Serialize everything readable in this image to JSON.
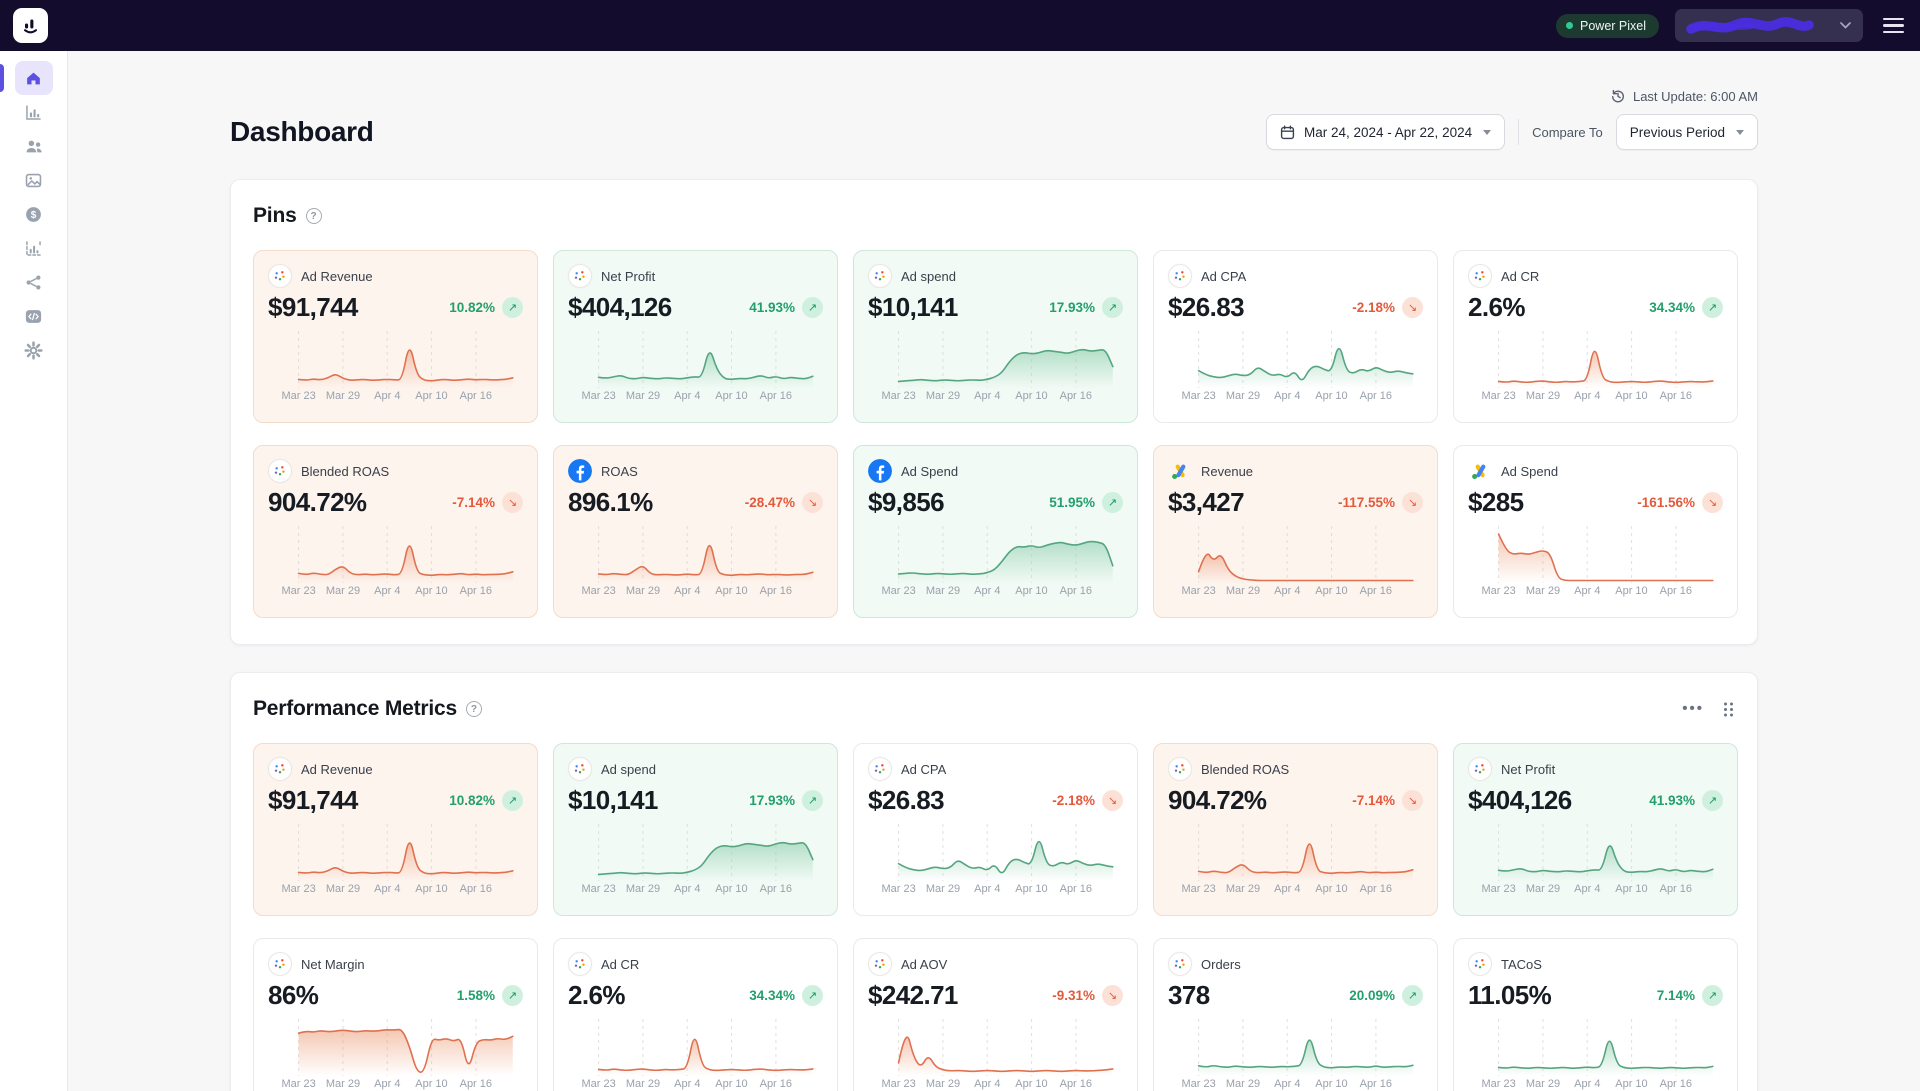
{
  "topbar": {
    "badge_label": "Power Pixel",
    "account_dropdown": {
      "redacted": true
    }
  },
  "sidebar": {
    "items": [
      {
        "icon": "home",
        "active": true
      },
      {
        "icon": "bar-chart",
        "active": false
      },
      {
        "icon": "users",
        "active": false
      },
      {
        "icon": "image",
        "active": false
      },
      {
        "icon": "dollar",
        "active": false
      },
      {
        "icon": "chart-report",
        "active": false
      },
      {
        "icon": "share",
        "active": false
      },
      {
        "icon": "code",
        "active": false
      },
      {
        "icon": "gear",
        "active": false
      }
    ]
  },
  "header": {
    "title": "Dashboard",
    "last_update": "Last Update: 6:00 AM",
    "date_range": "Mar 24, 2024 - Apr 22, 2024",
    "compare_to_label": "Compare To",
    "compare_value": "Previous Period"
  },
  "colors": {
    "accent": "#5b50e0",
    "green_text": "#22a06b",
    "orange_text": "#e2593c",
    "chart_green": "#55a581",
    "chart_orange": "#df7150",
    "navbar": "#140c2c"
  },
  "sections": [
    {
      "title": "Pins",
      "cards": [
        {
          "label": "Ad Revenue",
          "value": "$91,744",
          "change": "10.82%",
          "direction": "up",
          "icon": "blended-metrics",
          "tone": "peach",
          "chart_color": "orange",
          "series_key": "ad_revenue"
        },
        {
          "label": "Net Profit",
          "value": "$404,126",
          "change": "41.93%",
          "direction": "up",
          "icon": "blended-metrics",
          "tone": "mint",
          "chart_color": "green",
          "series_key": "net_profit"
        },
        {
          "label": "Ad spend",
          "value": "$10,141",
          "change": "17.93%",
          "direction": "up",
          "icon": "blended-metrics",
          "tone": "mint",
          "chart_color": "green",
          "series_key": "ad_spend"
        },
        {
          "label": "Ad CPA",
          "value": "$26.83",
          "change": "-2.18%",
          "direction": "down",
          "icon": "blended-metrics",
          "tone": "white",
          "chart_color": "green",
          "series_key": "ad_cpa"
        },
        {
          "label": "Ad CR",
          "value": "2.6%",
          "change": "34.34%",
          "direction": "up",
          "icon": "blended-metrics",
          "tone": "white",
          "chart_color": "orange",
          "series_key": "ad_cr"
        },
        {
          "label": "Blended ROAS",
          "value": "904.72%",
          "change": "-7.14%",
          "direction": "down",
          "icon": "blended-metrics",
          "tone": "peach",
          "chart_color": "orange",
          "series_key": "blended_roas"
        },
        {
          "label": "ROAS",
          "value": "896.1%",
          "change": "-28.47%",
          "direction": "down",
          "icon": "facebook",
          "tone": "peach",
          "chart_color": "orange",
          "series_key": "roas_fb"
        },
        {
          "label": "Ad Spend",
          "value": "$9,856",
          "change": "51.95%",
          "direction": "up",
          "icon": "facebook",
          "tone": "mint",
          "chart_color": "green",
          "series_key": "ad_spend_fb"
        },
        {
          "label": "Revenue",
          "value": "$3,427",
          "change": "-117.55%",
          "direction": "down",
          "icon": "google-ads",
          "tone": "peach",
          "chart_color": "orange",
          "series_key": "revenue_google"
        },
        {
          "label": "Ad Spend",
          "value": "$285",
          "change": "-161.56%",
          "direction": "down",
          "icon": "google-ads",
          "tone": "white",
          "chart_color": "orange",
          "series_key": "ad_spend_google"
        }
      ]
    },
    {
      "title": "Performance Metrics",
      "has_actions": true,
      "cards": [
        {
          "label": "Ad Revenue",
          "value": "$91,744",
          "change": "10.82%",
          "direction": "up",
          "icon": "blended-metrics",
          "tone": "peach",
          "chart_color": "orange",
          "series_key": "ad_revenue"
        },
        {
          "label": "Ad spend",
          "value": "$10,141",
          "change": "17.93%",
          "direction": "up",
          "icon": "blended-metrics",
          "tone": "mint",
          "chart_color": "green",
          "series_key": "ad_spend"
        },
        {
          "label": "Ad CPA",
          "value": "$26.83",
          "change": "-2.18%",
          "direction": "down",
          "icon": "blended-metrics",
          "tone": "white",
          "chart_color": "green",
          "series_key": "ad_cpa"
        },
        {
          "label": "Blended ROAS",
          "value": "904.72%",
          "change": "-7.14%",
          "direction": "down",
          "icon": "blended-metrics",
          "tone": "peach",
          "chart_color": "orange",
          "series_key": "blended_roas"
        },
        {
          "label": "Net Profit",
          "value": "$404,126",
          "change": "41.93%",
          "direction": "up",
          "icon": "blended-metrics",
          "tone": "mint",
          "chart_color": "green",
          "series_key": "net_profit"
        },
        {
          "label": "Net Margin",
          "value": "86%",
          "change": "1.58%",
          "direction": "up",
          "icon": "blended-metrics",
          "tone": "white",
          "chart_color": "orange",
          "series_key": "net_margin"
        },
        {
          "label": "Ad CR",
          "value": "2.6%",
          "change": "34.34%",
          "direction": "up",
          "icon": "blended-metrics",
          "tone": "white",
          "chart_color": "orange",
          "series_key": "ad_cr"
        },
        {
          "label": "Ad AOV",
          "value": "$242.71",
          "change": "-9.31%",
          "direction": "down",
          "icon": "blended-metrics",
          "tone": "white",
          "chart_color": "orange",
          "series_key": "ad_aov"
        },
        {
          "label": "Orders",
          "value": "378",
          "change": "20.09%",
          "direction": "up",
          "icon": "blended-metrics",
          "tone": "white",
          "chart_color": "green",
          "series_key": "orders"
        },
        {
          "label": "TACoS",
          "value": "11.05%",
          "change": "7.14%",
          "direction": "up",
          "icon": "blended-metrics",
          "tone": "white",
          "chart_color": "green",
          "series_key": "tacos"
        }
      ]
    }
  ],
  "chart_data": {
    "type": "line",
    "x_ticks": [
      "Mar 23",
      "Mar 29",
      "Apr 4",
      "Apr 10",
      "Apr 16"
    ],
    "x_tick_days": [
      0,
      6,
      12,
      18,
      24
    ],
    "days_total": 30,
    "series": {
      "ad_revenue": [
        13,
        11,
        14,
        12,
        16,
        24,
        15,
        11,
        12,
        13,
        11,
        12,
        13,
        12,
        12,
        88,
        22,
        11,
        10,
        12,
        13,
        11,
        12,
        14,
        12,
        13,
        12,
        12,
        13,
        16
      ],
      "net_profit": [
        17,
        15,
        18,
        21,
        15,
        14,
        17,
        15,
        14,
        16,
        15,
        14,
        16,
        18,
        17,
        78,
        32,
        14,
        13,
        15,
        14,
        17,
        21,
        15,
        19,
        14,
        17,
        15,
        14,
        19
      ],
      "ad_spend": [
        9,
        10,
        11,
        13,
        11,
        10,
        12,
        11,
        10,
        11,
        12,
        11,
        13,
        17,
        26,
        48,
        62,
        66,
        63,
        65,
        70,
        68,
        66,
        64,
        69,
        72,
        68,
        70,
        72,
        38
      ],
      "ad_cpa": [
        30,
        22,
        18,
        16,
        20,
        24,
        20,
        22,
        38,
        28,
        20,
        24,
        16,
        30,
        6,
        34,
        40,
        32,
        28,
        88,
        30,
        24,
        34,
        28,
        38,
        30,
        26,
        30,
        26,
        24
      ],
      "ad_cr": [
        9,
        7,
        10,
        8,
        7,
        9,
        10,
        8,
        7,
        9,
        8,
        9,
        11,
        86,
        16,
        8,
        7,
        8,
        9,
        8,
        7,
        9,
        10,
        8,
        7,
        8,
        9,
        8,
        8,
        10
      ],
      "blended_roas": [
        15,
        12,
        16,
        13,
        12,
        23,
        30,
        15,
        12,
        14,
        12,
        13,
        14,
        12,
        14,
        86,
        17,
        12,
        11,
        13,
        12,
        13,
        15,
        12,
        14,
        12,
        13,
        13,
        14,
        18
      ],
      "roas_fb": [
        14,
        12,
        15,
        13,
        12,
        22,
        31,
        14,
        12,
        13,
        12,
        12,
        14,
        12,
        13,
        87,
        18,
        12,
        11,
        13,
        12,
        13,
        14,
        12,
        13,
        12,
        12,
        13,
        13,
        17
      ],
      "ad_spend_fb": [
        14,
        15,
        16,
        14,
        13,
        15,
        14,
        13,
        14,
        15,
        13,
        14,
        16,
        22,
        38,
        58,
        68,
        66,
        70,
        65,
        70,
        74,
        76,
        72,
        70,
        74,
        78,
        76,
        72,
        30
      ],
      "revenue_google": [
        18,
        62,
        38,
        55,
        22,
        9,
        4,
        2,
        1,
        1,
        1,
        1,
        1,
        1,
        1,
        1,
        1,
        1,
        1,
        1,
        1,
        1,
        1,
        1,
        1,
        1,
        1,
        1,
        1,
        1
      ],
      "ad_spend_google": [
        92,
        60,
        52,
        55,
        52,
        56,
        60,
        54,
        6,
        1,
        1,
        1,
        1,
        1,
        1,
        1,
        1,
        1,
        1,
        1,
        1,
        1,
        1,
        1,
        1,
        1,
        1,
        1,
        1,
        1
      ],
      "net_margin": [
        80,
        84,
        82,
        85,
        83,
        84,
        86,
        84,
        83,
        85,
        84,
        85,
        87,
        86,
        88,
        55,
        4,
        3,
        70,
        66,
        70,
        64,
        71,
        5,
        62,
        68,
        66,
        70,
        67,
        74
      ],
      "ad_aov": [
        22,
        93,
        34,
        12,
        38,
        14,
        8,
        6,
        7,
        6,
        5,
        6,
        7,
        6,
        5,
        6,
        7,
        6,
        5,
        6,
        7,
        6,
        5,
        6,
        7,
        6,
        6,
        7,
        8,
        10
      ],
      "orders": [
        16,
        13,
        17,
        14,
        13,
        16,
        14,
        13,
        15,
        14,
        13,
        15,
        14,
        15,
        17,
        82,
        22,
        13,
        12,
        14,
        13,
        15,
        14,
        13,
        16,
        13,
        14,
        15,
        14,
        17
      ],
      "tacos": [
        13,
        11,
        14,
        12,
        11,
        13,
        12,
        11,
        12,
        13,
        11,
        12,
        14,
        12,
        15,
        80,
        19,
        12,
        11,
        12,
        13,
        12,
        11,
        13,
        12,
        11,
        12,
        13,
        12,
        15
      ]
    }
  }
}
